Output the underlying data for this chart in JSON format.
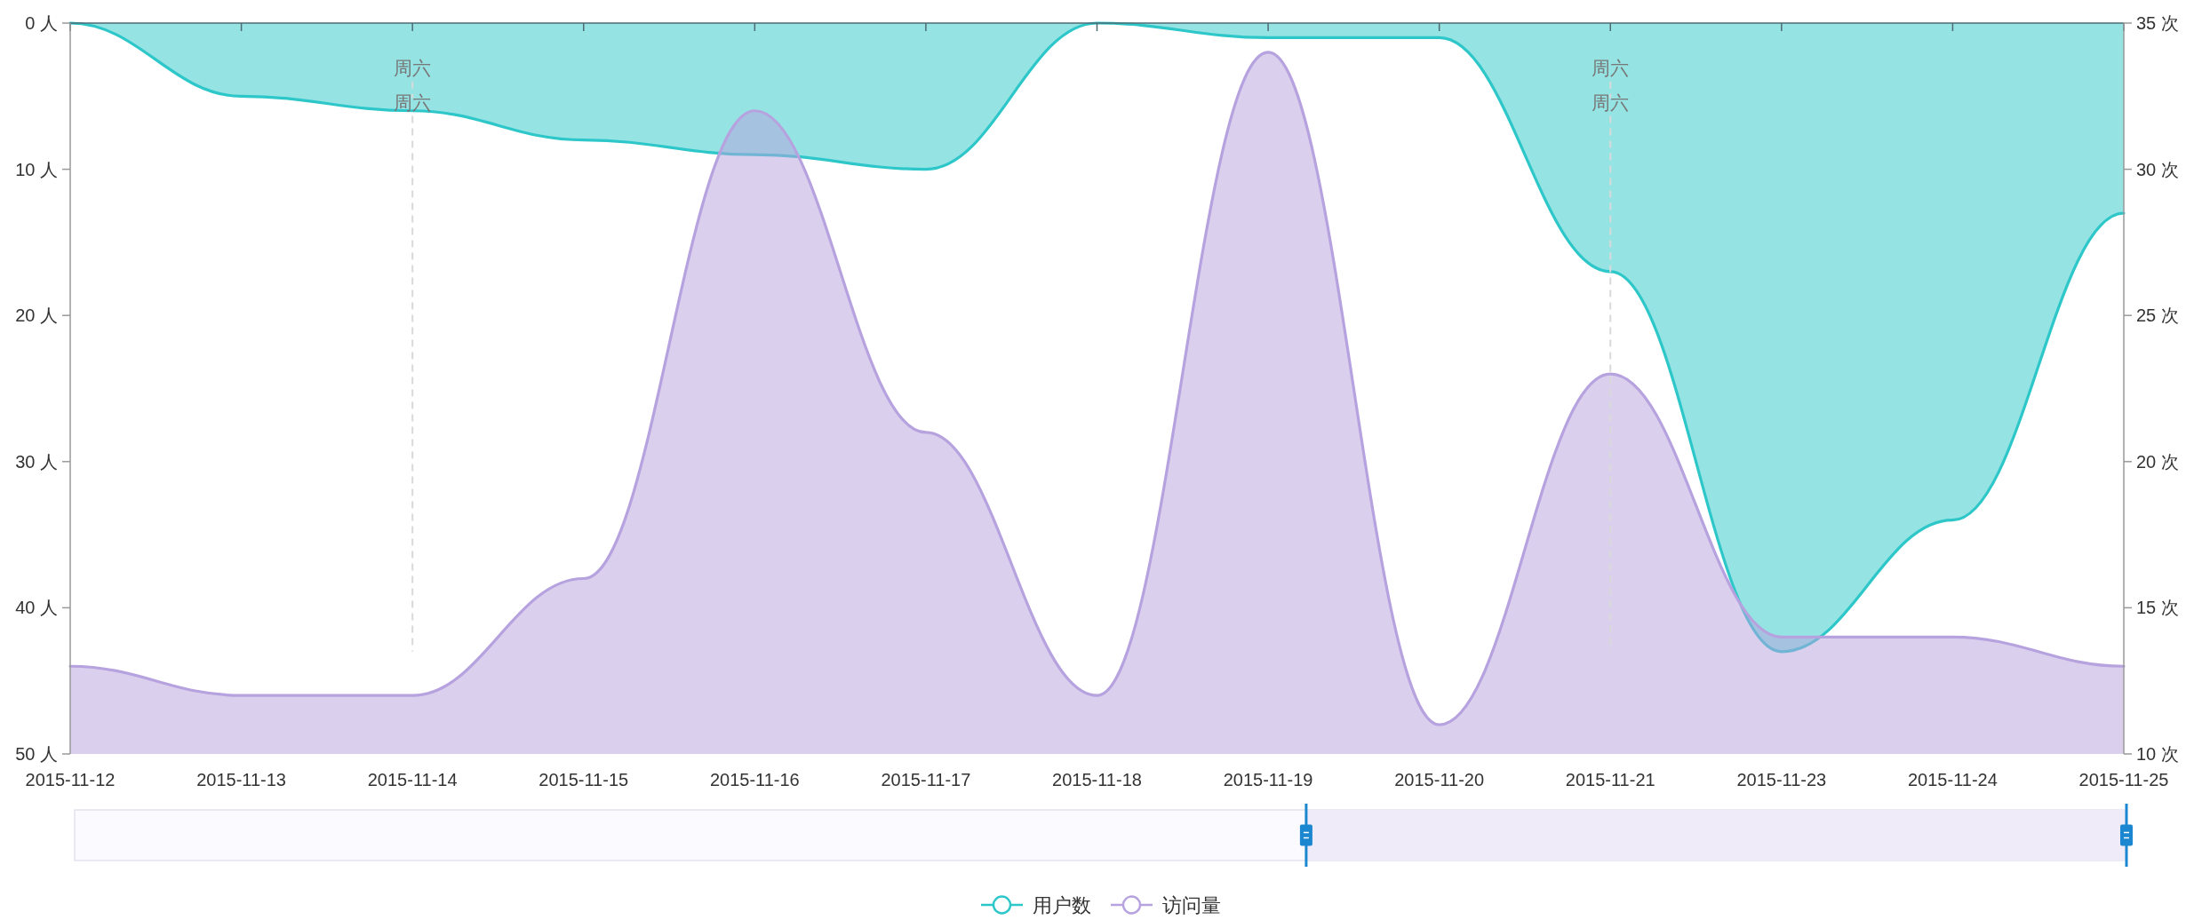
{
  "chart_data": {
    "type": "area",
    "categories": [
      "2015-11-12",
      "2015-11-13",
      "2015-11-14",
      "2015-11-15",
      "2015-11-16",
      "2015-11-17",
      "2015-11-18",
      "2015-11-19",
      "2015-11-20",
      "2015-11-21",
      "2015-11-23",
      "2015-11-24",
      "2015-11-25"
    ],
    "series": [
      {
        "name": "用户数",
        "color": "#2ec7c9",
        "values": [
          0,
          5,
          6,
          8,
          9,
          10,
          0,
          1,
          1,
          17,
          43,
          34,
          13
        ]
      },
      {
        "name": "访问量",
        "color": "#b6a2de",
        "axis": "y2",
        "values": [
          13,
          12,
          12,
          16,
          32,
          21,
          12,
          34,
          11,
          23,
          14,
          14,
          13
        ]
      }
    ],
    "ylim": [
      50,
      0
    ],
    "yticks": [
      {
        "value": 0,
        "label": "0 人"
      },
      {
        "value": 10,
        "label": "10 人"
      },
      {
        "value": 20,
        "label": "20 人"
      },
      {
        "value": 30,
        "label": "30 人"
      },
      {
        "value": 40,
        "label": "40 人"
      },
      {
        "value": 50,
        "label": "50 人"
      }
    ],
    "y2lim": [
      10,
      35
    ],
    "y2ticks": [
      {
        "value": 10,
        "label": "10 次"
      },
      {
        "value": 15,
        "label": "15 次"
      },
      {
        "value": 20,
        "label": "20 次"
      },
      {
        "value": 25,
        "label": "25 次"
      },
      {
        "value": 30,
        "label": "30 次"
      },
      {
        "value": 35,
        "label": "35 次"
      }
    ],
    "ref_lines": [
      {
        "axis": "x",
        "value": "2015-11-14",
        "label": "周六",
        "color": "#d9d9d9",
        "line_style": "dashed"
      },
      {
        "axis": "x",
        "value": "2015-11-14",
        "label": "周六",
        "color": "#d9d9d9",
        "line_style": "dashed"
      },
      {
        "axis": "x",
        "value": "2015-11-21",
        "label": "周六",
        "color": "#d9d9d9",
        "line_style": "dashed"
      },
      {
        "axis": "x",
        "value": "2015-11-21",
        "label": "周六",
        "color": "#d9d9d9",
        "line_style": "dashed"
      }
    ],
    "legend": "bottom",
    "grid": false
  }
}
